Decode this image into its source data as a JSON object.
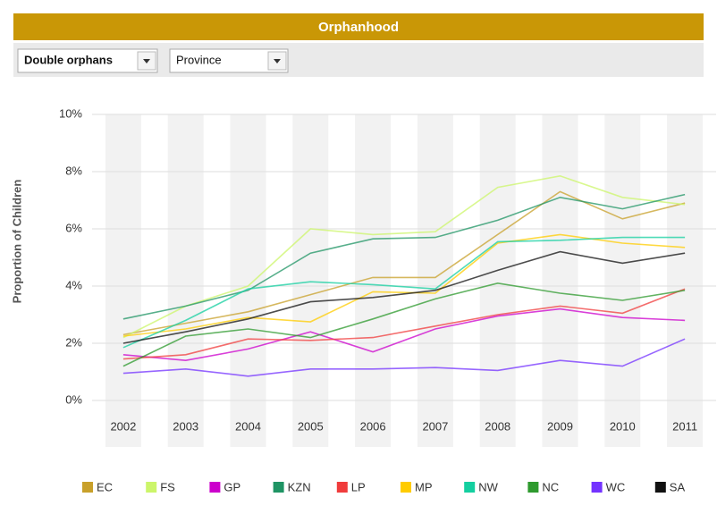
{
  "header": {
    "title": "Orphanhood"
  },
  "controls": [
    {
      "label": "Double orphans"
    },
    {
      "label": "Province"
    }
  ],
  "chart_data": {
    "type": "line",
    "y_label": "Proportion of Children",
    "categories": [
      "2002",
      "2003",
      "2004",
      "2005",
      "2006",
      "2007",
      "2008",
      "2009",
      "2010",
      "2011"
    ],
    "ylim": [
      0,
      10
    ],
    "yticks": [
      {
        "value": 0,
        "label": "0%"
      },
      {
        "value": 2,
        "label": "2%"
      },
      {
        "value": 4,
        "label": "4%"
      },
      {
        "value": 6,
        "label": "6%"
      },
      {
        "value": 8,
        "label": "8%"
      },
      {
        "value": 10,
        "label": "10%"
      }
    ],
    "grid": true,
    "legend": "bottom",
    "series": [
      {
        "name": "EC",
        "color": "#c8a02a",
        "values": [
          2.3,
          2.7,
          3.1,
          3.7,
          4.3,
          4.3,
          5.8,
          7.3,
          6.35,
          6.9
        ]
      },
      {
        "name": "FS",
        "color": "#ccf56a",
        "values": [
          2.2,
          3.3,
          4.0,
          6.0,
          5.8,
          5.9,
          7.45,
          7.85,
          7.1,
          6.85
        ]
      },
      {
        "name": "GP",
        "color": "#cc00cc",
        "values": [
          1.6,
          1.4,
          1.8,
          2.4,
          1.7,
          2.5,
          2.95,
          3.2,
          2.9,
          2.8
        ]
      },
      {
        "name": "KZN",
        "color": "#1f9464",
        "values": [
          2.85,
          3.3,
          3.85,
          5.15,
          5.65,
          5.7,
          6.3,
          7.1,
          6.7,
          7.2
        ]
      },
      {
        "name": "LP",
        "color": "#f03c3c",
        "values": [
          1.45,
          1.6,
          2.15,
          2.1,
          2.2,
          2.6,
          3.0,
          3.3,
          3.05,
          3.9
        ]
      },
      {
        "name": "MP",
        "color": "#ffcc00",
        "values": [
          2.25,
          2.5,
          2.9,
          2.75,
          3.8,
          3.75,
          5.5,
          5.8,
          5.5,
          5.35
        ]
      },
      {
        "name": "NW",
        "color": "#14cfa0",
        "values": [
          1.85,
          2.8,
          3.9,
          4.15,
          4.05,
          3.9,
          5.55,
          5.6,
          5.7,
          5.7
        ]
      },
      {
        "name": "NC",
        "color": "#2e9a2e",
        "values": [
          1.2,
          2.25,
          2.5,
          2.2,
          2.85,
          3.55,
          4.1,
          3.75,
          3.5,
          3.85
        ]
      },
      {
        "name": "WC",
        "color": "#7433ff",
        "values": [
          0.95,
          1.1,
          0.85,
          1.1,
          1.1,
          1.15,
          1.05,
          1.4,
          1.2,
          2.15
        ]
      },
      {
        "name": "SA",
        "color": "#111111",
        "values": [
          2.0,
          2.4,
          2.85,
          3.45,
          3.6,
          3.85,
          4.55,
          5.2,
          4.8,
          5.15
        ]
      }
    ]
  }
}
